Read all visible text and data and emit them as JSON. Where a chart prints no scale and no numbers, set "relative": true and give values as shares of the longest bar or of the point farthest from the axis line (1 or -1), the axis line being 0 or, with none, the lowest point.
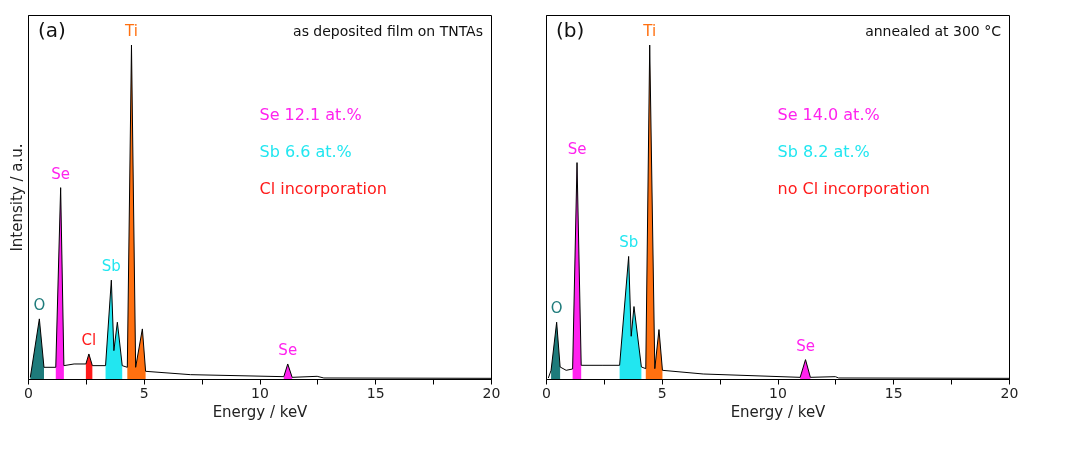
{
  "chart_data": [
    {
      "type": "line",
      "title": "(a)",
      "subtitle": "as deposited film on TNTAs",
      "xlabel": "Energy / keV",
      "ylabel": "Intensity / a.u.",
      "relative": true,
      "xlim": [
        0,
        20
      ],
      "xticks": [
        0,
        {
          "value": 2.5,
          "label": null
        },
        5,
        {
          "value": 7.5,
          "label": null
        },
        10,
        {
          "value": 12.5,
          "label": null
        },
        15,
        {
          "value": 17.5,
          "label": null
        },
        20
      ],
      "grid": false,
      "annotations": [
        "Se  12.1 at.%",
        "Sb  6.6 at.%",
        "Cl incorporation"
      ],
      "series": [
        {
          "type": "area",
          "name": "O",
          "color": "#1e7b7b",
          "x": [
            0.1,
            0.49,
            0.69
          ],
          "values": [
            0.005,
            0.18,
            0.035
          ]
        },
        {
          "type": "area",
          "name": "Se",
          "color": "#ff22ee",
          "x": [
            1.2,
            1.41,
            1.55
          ],
          "values": [
            0.035,
            0.573,
            0.04
          ]
        },
        {
          "type": "area",
          "name": "Cl",
          "color": "#ff1a1a",
          "x": [
            2.5,
            2.63,
            2.78
          ],
          "values": [
            0.045,
            0.075,
            0.04
          ]
        },
        {
          "type": "area",
          "name": "Sb",
          "color": "#22e6f0",
          "x": [
            3.35,
            3.6,
            3.71,
            3.86,
            4.07
          ],
          "values": [
            0.04,
            0.296,
            0.085,
            0.17,
            0.04
          ]
        },
        {
          "type": "area",
          "name": "Ti",
          "color": "#ff7010",
          "x": [
            4.29,
            4.47,
            4.65,
            4.94,
            5.08
          ],
          "values": [
            0.035,
            1.0,
            0.035,
            0.15,
            0.023
          ]
        },
        {
          "type": "area",
          "name": "Se",
          "color": "#ff22ee",
          "x": [
            11.05,
            11.22,
            11.41
          ],
          "values": [
            0.007,
            0.045,
            0.005
          ]
        },
        {
          "color": "#000000",
          "x": [
            0.1,
            0.49,
            0.69,
            1.2,
            1.41,
            1.55,
            1.99,
            2.5,
            2.63,
            2.78,
            3.35,
            3.6,
            3.71,
            3.86,
            4.07,
            4.29,
            4.47,
            4.65,
            4.94,
            5.08,
            7.02,
            11.05,
            11.22,
            11.41,
            12.49,
            12.78,
            20
          ],
          "values": [
            0.005,
            0.18,
            0.035,
            0.035,
            0.573,
            0.04,
            0.045,
            0.045,
            0.075,
            0.04,
            0.04,
            0.296,
            0.085,
            0.17,
            0.04,
            0.035,
            1.0,
            0.035,
            0.15,
            0.023,
            0.013,
            0.007,
            0.045,
            0.005,
            0.008,
            0.003,
            0.002
          ]
        }
      ]
    },
    {
      "type": "line",
      "title": "(b)",
      "subtitle": "annealed at 300 °C",
      "xlabel": "Energy / keV",
      "relative": true,
      "xlim": [
        0,
        20
      ],
      "xticks": [
        0,
        {
          "value": 2.5,
          "label": null
        },
        5,
        {
          "value": 7.5,
          "label": null
        },
        10,
        {
          "value": 12.5,
          "label": null
        },
        15,
        {
          "value": 17.5,
          "label": null
        },
        20
      ],
      "grid": false,
      "annotations": [
        "Se  14.0 at.%",
        "Sb  8.2 at.%",
        "no Cl incorporation"
      ],
      "series": [
        {
          "type": "area",
          "name": "O",
          "color": "#1e7b7b",
          "x": [
            0.22,
            0.46,
            0.61
          ],
          "values": [
            0.026,
            0.17,
            0.036
          ]
        },
        {
          "type": "area",
          "name": "Se",
          "color": "#ff22ee",
          "x": [
            1.15,
            1.34,
            1.52
          ],
          "values": [
            0.03,
            0.648,
            0.041
          ]
        },
        {
          "type": "area",
          "name": "Sb",
          "color": "#22e6f0",
          "x": [
            3.18,
            3.57,
            3.68,
            3.8,
            4.12
          ],
          "values": [
            0.041,
            0.367,
            0.128,
            0.217,
            0.036
          ]
        },
        {
          "type": "area",
          "name": "Ti",
          "color": "#ff7010",
          "x": [
            4.31,
            4.48,
            4.7,
            4.88,
            5.03
          ],
          "values": [
            0.031,
            1.0,
            0.031,
            0.148,
            0.026
          ]
        },
        {
          "type": "area",
          "name": "Se",
          "color": "#ff22ee",
          "x": [
            10.98,
            11.21,
            11.42
          ],
          "values": [
            0.005,
            0.058,
            0.005
          ]
        },
        {
          "color": "#000000",
          "x": [
            0.1,
            0.22,
            0.46,
            0.61,
            0.87,
            1.15,
            1.34,
            1.52,
            2.46,
            3.18,
            3.57,
            3.68,
            3.8,
            4.12,
            4.31,
            4.48,
            4.7,
            4.88,
            5.03,
            6.79,
            10.98,
            11.21,
            11.42,
            12.5,
            12.64,
            20
          ],
          "values": [
            0.003,
            0.026,
            0.17,
            0.036,
            0.026,
            0.03,
            0.648,
            0.041,
            0.041,
            0.041,
            0.367,
            0.128,
            0.217,
            0.036,
            0.031,
            1.0,
            0.031,
            0.148,
            0.026,
            0.015,
            0.005,
            0.058,
            0.005,
            0.007,
            0.003,
            0.002
          ]
        }
      ]
    }
  ]
}
